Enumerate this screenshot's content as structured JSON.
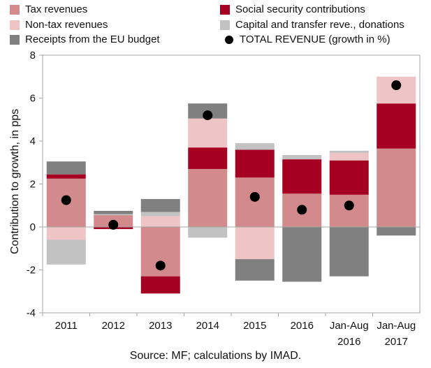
{
  "chart_data": {
    "type": "bar",
    "subtype": "stacked bar with total markers",
    "categories": [
      [
        "2011"
      ],
      [
        "2012"
      ],
      [
        "2013"
      ],
      [
        "2014"
      ],
      [
        "2015"
      ],
      [
        "2016"
      ],
      [
        "Jan-Aug",
        "2016"
      ],
      [
        "Jan-Aug",
        "2017"
      ]
    ],
    "series": [
      {
        "name": "Tax revenues",
        "color": "#d28a8c",
        "values": [
          2.25,
          0.55,
          -2.3,
          2.7,
          2.3,
          1.55,
          1.5,
          3.65
        ]
      },
      {
        "name": "Social security contributions",
        "color": "#a50021",
        "values": [
          0.2,
          -0.1,
          -0.8,
          1.0,
          1.3,
          1.6,
          1.6,
          2.1
        ]
      },
      {
        "name": "Non-tax revenues",
        "color": "#efc4c5",
        "values": [
          -0.6,
          0.0,
          0.5,
          1.35,
          -1.5,
          0.0,
          0.35,
          1.25
        ]
      },
      {
        "name": "Capital and transfer reve., donations",
        "color": "#c2c2c2",
        "values": [
          -1.15,
          0.05,
          0.2,
          -0.5,
          0.3,
          0.2,
          0.1,
          0.0
        ]
      },
      {
        "name": "Receipts from the EU budget",
        "color": "#808080",
        "values": [
          0.6,
          0.15,
          0.6,
          0.7,
          -1.0,
          -2.55,
          -2.3,
          -0.4
        ]
      }
    ],
    "total": {
      "name": "TOTAL REVENUE (growth in %)",
      "color": "#000000",
      "values": [
        1.25,
        0.1,
        -1.8,
        5.2,
        1.4,
        0.8,
        1.0,
        6.6
      ]
    },
    "ylabel": "Contribution to growth, in pps",
    "xlabel": "",
    "ylim": [
      -4,
      8
    ],
    "yticks": [
      -4,
      -2,
      0,
      2,
      4,
      6,
      8
    ],
    "grid": false,
    "legend_position": "top",
    "source": "Source: MF; calculations by IMAD."
  }
}
